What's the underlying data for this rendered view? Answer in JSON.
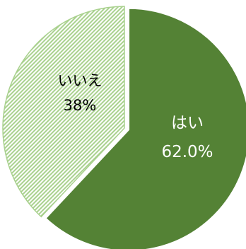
{
  "chart_data": {
    "type": "pie",
    "start_angle_deg": 0,
    "direction": "clockwise",
    "slices": [
      {
        "name": "はい",
        "value": 62.0,
        "value_label": "62.0%",
        "fill": "#548235",
        "pattern": "solid",
        "label_color": "#ffffff"
      },
      {
        "name": "いいえ",
        "value": 38,
        "value_label": "38%",
        "fill": "#a9d18e",
        "pattern": "diagonal-stripes",
        "pattern_bg": "#ffffff",
        "label_color": "#000000"
      }
    ],
    "legend": "none"
  }
}
